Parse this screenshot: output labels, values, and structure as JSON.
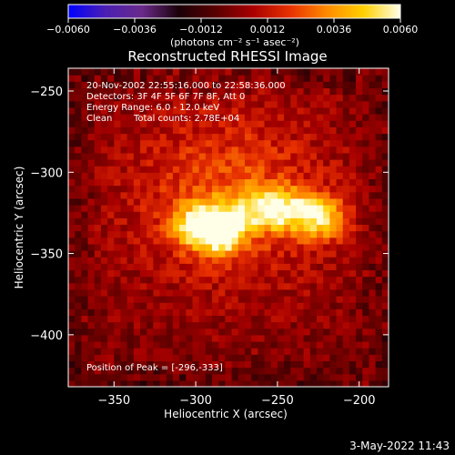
{
  "chart_data": {
    "type": "heatmap",
    "title": "Reconstructed RHESSI Image",
    "xlabel": "Heliocentric X (arcsec)",
    "ylabel": "Heliocentric Y (arcsec)",
    "xlim": [
      -378,
      -182
    ],
    "ylim": [
      -432,
      -236
    ],
    "x_ticks": [
      -350,
      -300,
      -250,
      -200
    ],
    "y_ticks": [
      -250,
      -300,
      -350,
      -400
    ],
    "x_tick_labels": [
      "−350",
      "−300",
      "−250",
      "−200"
    ],
    "y_tick_labels": [
      "−250",
      "−300",
      "−350",
      "−400"
    ],
    "colorbar": {
      "range": [
        -0.006,
        0.006
      ],
      "tick_labels": [
        "−0.0060",
        "−0.0036",
        "−0.0012",
        "0.0012",
        "0.0036",
        "0.0060"
      ],
      "unit_label": "(photons cm⁻² s⁻¹ asec⁻²)",
      "colormap": [
        "#0000ff",
        "#4a1fb3",
        "#6a2a8a",
        "#1a0008",
        "#5a0000",
        "#a80000",
        "#e83000",
        "#ff8a00",
        "#ffd000",
        "#ffffe8"
      ]
    },
    "annotations": {
      "time": "20-Nov-2002 22:55:16.000 to 22:58:36.000",
      "detectors": "Detectors: 3F 4F 5F 6F 7F 8F, Att 0",
      "energy": "Energy Range: 6.0 - 12.0 keV",
      "method": "Clean",
      "counts": "Total counts: 2.78E+04",
      "peak": "Position of Peak = [-296,-333]"
    },
    "peak": [
      -296,
      -333
    ],
    "sources": [
      {
        "x": -296,
        "y": -333,
        "sx": 11,
        "sy": 9,
        "amp": 0.006
      },
      {
        "x": -282,
        "y": -338,
        "sx": 8,
        "sy": 8,
        "amp": 0.0042
      },
      {
        "x": -250,
        "y": -323,
        "sx": 20,
        "sy": 9,
        "amp": 0.0048
      },
      {
        "x": -222,
        "y": -330,
        "sx": 10,
        "sy": 9,
        "amp": 0.003
      },
      {
        "x": -280,
        "y": -315,
        "sx": 45,
        "sy": 40,
        "amp": 0.0024
      }
    ]
  },
  "footer": {
    "date": "3-May-2022 11:43"
  }
}
